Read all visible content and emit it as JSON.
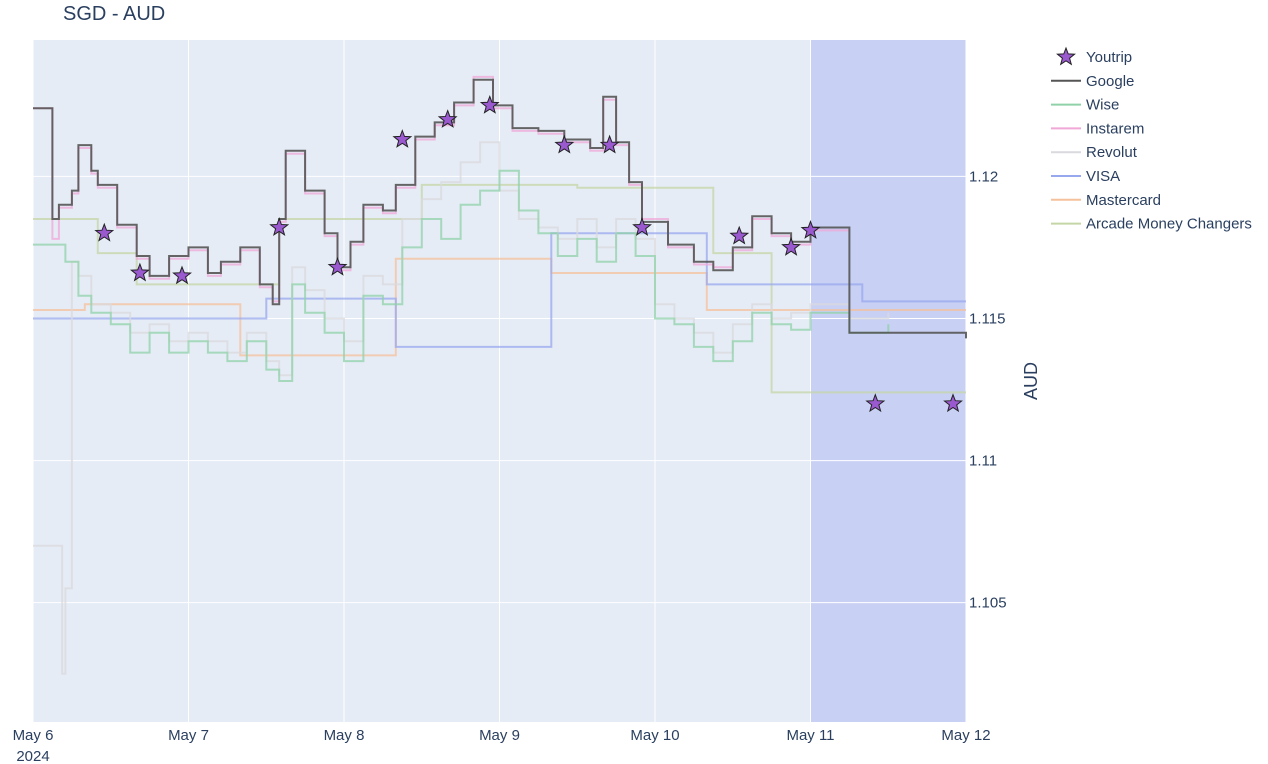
{
  "chart_data": {
    "type": "line",
    "title": "SGD - AUD",
    "xlabel": "",
    "ylabel": "AUD",
    "x_ticks": [
      "May 6",
      "May 7",
      "May 8",
      "May 9",
      "May 10",
      "May 11",
      "May 12"
    ],
    "x_tick_sublabel": "2024",
    "y_ticks": [
      1.105,
      1.11,
      1.115,
      1.12
    ],
    "xlim": [
      "2024-05-06T00:00",
      "2024-05-12T00:00"
    ],
    "ylim": [
      1.1008,
      1.1248
    ],
    "y_axis_side": "right",
    "grid": true,
    "legend_position": "top-right-outside",
    "shaded_region": {
      "x_start": "2024-05-11T00:00",
      "x_end": "2024-05-12T00:00",
      "color": "#c8d0f4"
    },
    "series": [
      {
        "name": "Youtrip",
        "mode": "markers",
        "marker": "star",
        "color": "#9b59d0",
        "x": [
          "2024-05-06T11:00",
          "2024-05-06T16:30",
          "2024-05-06T23:00",
          "2024-05-07T14:00",
          "2024-05-07T23:00",
          "2024-05-08T09:00",
          "2024-05-08T16:00",
          "2024-05-08T22:30",
          "2024-05-09T10:00",
          "2024-05-09T17:00",
          "2024-05-09T22:00",
          "2024-05-10T13:00",
          "2024-05-10T21:00",
          "2024-05-11T00:00",
          "2024-05-11T10:00",
          "2024-05-11T22:00"
        ],
        "y": [
          1.118,
          1.1166,
          1.1165,
          1.1182,
          1.1168,
          1.1213,
          1.122,
          1.1225,
          1.1211,
          1.1211,
          1.1182,
          1.1179,
          1.1175,
          1.1181,
          1.112,
          1.112
        ]
      },
      {
        "name": "Google",
        "mode": "line-hv",
        "color": "#555555",
        "x": [
          "2024-05-06T00:00",
          "2024-05-06T03:00",
          "2024-05-06T04:00",
          "2024-05-06T06:00",
          "2024-05-06T07:00",
          "2024-05-06T09:00",
          "2024-05-06T10:00",
          "2024-05-06T13:00",
          "2024-05-06T16:00",
          "2024-05-06T18:00",
          "2024-05-06T21:00",
          "2024-05-07T00:00",
          "2024-05-07T03:00",
          "2024-05-07T05:00",
          "2024-05-07T08:00",
          "2024-05-07T11:00",
          "2024-05-07T13:00",
          "2024-05-07T14:00",
          "2024-05-07T15:00",
          "2024-05-07T18:00",
          "2024-05-07T21:00",
          "2024-05-07T23:00",
          "2024-05-08T01:00",
          "2024-05-08T03:00",
          "2024-05-08T06:00",
          "2024-05-08T08:00",
          "2024-05-08T11:00",
          "2024-05-08T14:00",
          "2024-05-08T17:00",
          "2024-05-08T20:00",
          "2024-05-08T23:00",
          "2024-05-09T02:00",
          "2024-05-09T06:00",
          "2024-05-09T10:00",
          "2024-05-09T14:00",
          "2024-05-09T16:00",
          "2024-05-09T18:00",
          "2024-05-09T20:00",
          "2024-05-09T22:00",
          "2024-05-10T02:00",
          "2024-05-10T06:00",
          "2024-05-10T09:00",
          "2024-05-10T12:00",
          "2024-05-10T15:00",
          "2024-05-10T18:00",
          "2024-05-10T21:00",
          "2024-05-11T00:00",
          "2024-05-11T06:00",
          "2024-05-11T12:00",
          "2024-05-11T18:00",
          "2024-05-12T00:00"
        ],
        "y": [
          1.1224,
          1.1185,
          1.119,
          1.1195,
          1.1211,
          1.1202,
          1.1197,
          1.1183,
          1.1172,
          1.1165,
          1.1172,
          1.1175,
          1.1166,
          1.117,
          1.1175,
          1.1162,
          1.1155,
          1.1185,
          1.1209,
          1.1195,
          1.118,
          1.1168,
          1.1177,
          1.119,
          1.1188,
          1.1197,
          1.1214,
          1.1219,
          1.1226,
          1.1234,
          1.1225,
          1.1217,
          1.1216,
          1.1213,
          1.121,
          1.1228,
          1.1212,
          1.1198,
          1.1184,
          1.1176,
          1.117,
          1.1167,
          1.1175,
          1.1186,
          1.118,
          1.1177,
          1.1182,
          1.1145,
          1.1145,
          1.1145,
          1.1143
        ]
      },
      {
        "name": "Wise",
        "mode": "line-hv",
        "color": "#8fd1a8",
        "x": [
          "2024-05-06T00:00",
          "2024-05-06T03:00",
          "2024-05-06T05:00",
          "2024-05-06T07:00",
          "2024-05-06T09:00",
          "2024-05-06T12:00",
          "2024-05-06T15:00",
          "2024-05-06T18:00",
          "2024-05-06T21:00",
          "2024-05-07T00:00",
          "2024-05-07T03:00",
          "2024-05-07T06:00",
          "2024-05-07T09:00",
          "2024-05-07T12:00",
          "2024-05-07T14:00",
          "2024-05-07T16:00",
          "2024-05-07T18:00",
          "2024-05-07T21:00",
          "2024-05-08T00:00",
          "2024-05-08T03:00",
          "2024-05-08T06:00",
          "2024-05-08T09:00",
          "2024-05-08T12:00",
          "2024-05-08T15:00",
          "2024-05-08T18:00",
          "2024-05-08T21:00",
          "2024-05-09T00:00",
          "2024-05-09T03:00",
          "2024-05-09T06:00",
          "2024-05-09T09:00",
          "2024-05-09T12:00",
          "2024-05-09T15:00",
          "2024-05-09T18:00",
          "2024-05-09T21:00",
          "2024-05-10T00:00",
          "2024-05-10T03:00",
          "2024-05-10T06:00",
          "2024-05-10T09:00",
          "2024-05-10T12:00",
          "2024-05-10T15:00",
          "2024-05-10T18:00",
          "2024-05-10T21:00",
          "2024-05-11T00:00",
          "2024-05-11T06:00",
          "2024-05-11T12:00"
        ],
        "y": [
          1.1176,
          1.1176,
          1.117,
          1.1158,
          1.1152,
          1.1148,
          1.1138,
          1.1145,
          1.1138,
          1.1142,
          1.1138,
          1.1135,
          1.1142,
          1.1132,
          1.1128,
          1.1162,
          1.1152,
          1.1145,
          1.1135,
          1.1158,
          1.1155,
          1.1175,
          1.1185,
          1.1178,
          1.119,
          1.1195,
          1.1202,
          1.1188,
          1.118,
          1.1172,
          1.1178,
          1.117,
          1.118,
          1.1172,
          1.115,
          1.1148,
          1.114,
          1.1135,
          1.1142,
          1.1152,
          1.1148,
          1.1146,
          1.1152,
          1.1145,
          1.1148
        ]
      },
      {
        "name": "Instarem",
        "mode": "line-hv",
        "color": "#f0a8d8",
        "x": [
          "2024-05-06T00:00",
          "2024-05-06T03:00",
          "2024-05-06T04:00",
          "2024-05-06T06:00",
          "2024-05-06T07:00",
          "2024-05-06T09:00",
          "2024-05-06T10:00",
          "2024-05-06T13:00",
          "2024-05-06T16:00",
          "2024-05-06T18:00",
          "2024-05-06T21:00",
          "2024-05-07T00:00",
          "2024-05-07T03:00",
          "2024-05-07T05:00",
          "2024-05-07T08:00",
          "2024-05-07T11:00",
          "2024-05-07T13:00",
          "2024-05-07T14:00",
          "2024-05-07T15:00",
          "2024-05-07T18:00",
          "2024-05-07T21:00",
          "2024-05-07T23:00",
          "2024-05-08T01:00",
          "2024-05-08T03:00",
          "2024-05-08T06:00",
          "2024-05-08T08:00",
          "2024-05-08T11:00",
          "2024-05-08T14:00",
          "2024-05-08T17:00",
          "2024-05-08T20:00",
          "2024-05-08T23:00",
          "2024-05-09T02:00",
          "2024-05-09T06:00",
          "2024-05-09T10:00",
          "2024-05-09T14:00",
          "2024-05-09T16:00",
          "2024-05-09T18:00",
          "2024-05-09T20:00",
          "2024-05-09T22:00",
          "2024-05-10T02:00",
          "2024-05-10T06:00",
          "2024-05-10T09:00",
          "2024-05-10T12:00",
          "2024-05-10T15:00",
          "2024-05-10T18:00",
          "2024-05-10T21:00",
          "2024-05-11T00:00",
          "2024-05-11T06:00"
        ],
        "y": [
          1.1224,
          1.1178,
          1.1189,
          1.1194,
          1.121,
          1.1201,
          1.1196,
          1.1182,
          1.1171,
          1.1164,
          1.1171,
          1.1174,
          1.1165,
          1.1169,
          1.1174,
          1.1161,
          1.1156,
          1.1184,
          1.1208,
          1.1194,
          1.1179,
          1.1167,
          1.1176,
          1.1189,
          1.1187,
          1.1196,
          1.1213,
          1.1218,
          1.1225,
          1.1235,
          1.1224,
          1.1216,
          1.1215,
          1.1212,
          1.1209,
          1.1227,
          1.1211,
          1.1197,
          1.1185,
          1.1175,
          1.1169,
          1.1168,
          1.1174,
          1.1185,
          1.1179,
          1.1176,
          1.1181,
          1.1181
        ]
      },
      {
        "name": "Revolut",
        "mode": "line-hv",
        "color": "#d9d9de",
        "x": [
          "2024-05-06T00:00",
          "2024-05-06T04:30",
          "2024-05-06T05:00",
          "2024-05-06T06:00",
          "2024-05-06T07:00",
          "2024-05-06T09:00",
          "2024-05-06T12:00",
          "2024-05-06T15:00",
          "2024-05-06T18:00",
          "2024-05-06T21:00",
          "2024-05-07T00:00",
          "2024-05-07T03:00",
          "2024-05-07T06:00",
          "2024-05-07T09:00",
          "2024-05-07T12:00",
          "2024-05-07T14:00",
          "2024-05-07T16:00",
          "2024-05-07T18:00",
          "2024-05-07T21:00",
          "2024-05-08T00:00",
          "2024-05-08T03:00",
          "2024-05-08T06:00",
          "2024-05-08T09:00",
          "2024-05-08T12:00",
          "2024-05-08T15:00",
          "2024-05-08T18:00",
          "2024-05-08T21:00",
          "2024-05-09T00:00",
          "2024-05-09T03:00",
          "2024-05-09T06:00",
          "2024-05-09T09:00",
          "2024-05-09T12:00",
          "2024-05-09T15:00",
          "2024-05-09T18:00",
          "2024-05-09T21:00",
          "2024-05-10T00:00",
          "2024-05-10T03:00",
          "2024-05-10T06:00",
          "2024-05-10T09:00",
          "2024-05-10T12:00",
          "2024-05-10T15:00",
          "2024-05-10T18:00",
          "2024-05-10T21:00",
          "2024-05-11T00:00",
          "2024-05-11T06:00",
          "2024-05-11T12:00"
        ],
        "y": [
          1.107,
          1.1025,
          1.1055,
          1.117,
          1.1165,
          1.1155,
          1.1152,
          1.1145,
          1.1148,
          1.1142,
          1.1145,
          1.1142,
          1.1138,
          1.1145,
          1.1135,
          1.113,
          1.1168,
          1.116,
          1.115,
          1.1142,
          1.1165,
          1.1162,
          1.1185,
          1.1192,
          1.1198,
          1.1205,
          1.1212,
          1.1195,
          1.1185,
          1.1182,
          1.1178,
          1.1185,
          1.1175,
          1.1185,
          1.1178,
          1.1155,
          1.115,
          1.1145,
          1.1138,
          1.1148,
          1.1155,
          1.115,
          1.1152,
          1.1155,
          1.115,
          1.1152
        ]
      },
      {
        "name": "VISA",
        "mode": "line-hv",
        "color": "#98a8ee",
        "x": [
          "2024-05-06T00:00",
          "2024-05-07T12:00",
          "2024-05-08T08:00",
          "2024-05-09T08:00",
          "2024-05-10T08:00",
          "2024-05-11T08:00",
          "2024-05-12T00:00"
        ],
        "y": [
          1.115,
          1.1157,
          1.114,
          1.118,
          1.1162,
          1.1156,
          1.1156
        ]
      },
      {
        "name": "Mastercard",
        "mode": "line-hv",
        "color": "#f5c09c",
        "x": [
          "2024-05-06T00:00",
          "2024-05-06T08:00",
          "2024-05-07T08:00",
          "2024-05-08T08:00",
          "2024-05-09T08:00",
          "2024-05-10T08:00",
          "2024-05-12T00:00"
        ],
        "y": [
          1.1153,
          1.1155,
          1.1137,
          1.1171,
          1.1166,
          1.1153,
          1.1153
        ]
      },
      {
        "name": "Arcade Money Changers",
        "mode": "line-hv",
        "color": "#c5d6a6",
        "x": [
          "2024-05-06T00:00",
          "2024-05-06T10:00",
          "2024-05-06T16:00",
          "2024-05-07T14:00",
          "2024-05-08T12:00",
          "2024-05-09T12:00",
          "2024-05-10T09:00",
          "2024-05-10T18:00",
          "2024-05-12T00:00"
        ],
        "y": [
          1.1185,
          1.1173,
          1.1162,
          1.1185,
          1.1197,
          1.1196,
          1.1173,
          1.1124,
          1.1124
        ]
      }
    ]
  }
}
